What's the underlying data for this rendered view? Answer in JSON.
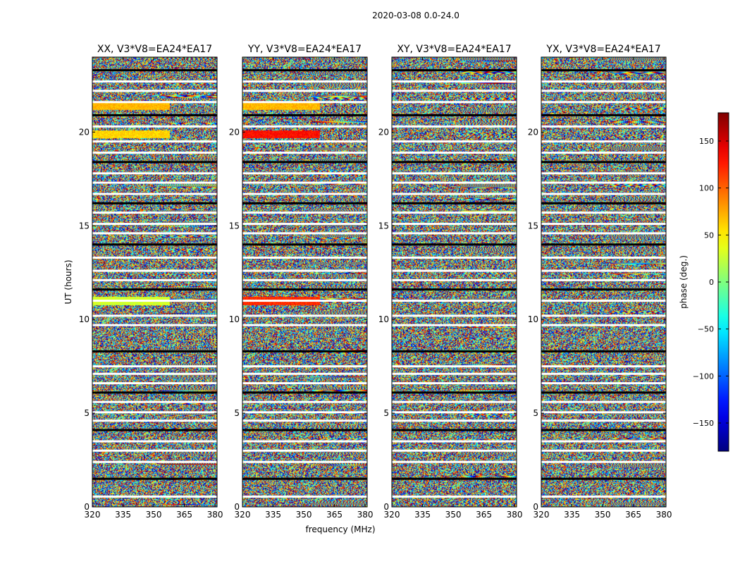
{
  "figure": {
    "suptitle": "2020-03-08 0.0-24.0"
  },
  "chart_data": {
    "type": "heatmap",
    "xlabel": "frequency (MHz)",
    "ylabel": "UT (hours)",
    "xlim": [
      320,
      381
    ],
    "ylim": [
      0,
      24
    ],
    "xticks": [
      320,
      335,
      350,
      365,
      380
    ],
    "yticks": [
      0,
      5,
      10,
      15,
      20
    ],
    "panels": [
      {
        "title": "XX, V3*V8=EA24*EA17",
        "polarization": "XX"
      },
      {
        "title": "YY, V3*V8=EA24*EA17",
        "polarization": "YY"
      },
      {
        "title": "XY, V3*V8=EA24*EA17",
        "polarization": "XY"
      },
      {
        "title": "YX, V3*V8=EA24*EA17",
        "polarization": "YX"
      }
    ],
    "colorbar": {
      "label": "phase (deg.)",
      "range": [
        -180,
        180
      ],
      "ticks": [
        -150,
        -100,
        -50,
        0,
        50,
        100,
        150
      ],
      "colormap": "jet"
    },
    "gaps_ut_hours": [
      0.55,
      1.5,
      2.4,
      3.0,
      3.5,
      4.1,
      4.6,
      5.05,
      5.6,
      6.1,
      6.6,
      7.1,
      7.5,
      8.3,
      9.7,
      10.2,
      11.0,
      11.6,
      12.1,
      12.6,
      13.3,
      14.0,
      14.6,
      15.1,
      15.7,
      16.2,
      16.7,
      17.3,
      17.8,
      18.4,
      18.9,
      19.5,
      20.3,
      20.9,
      21.6,
      22.2,
      22.7,
      23.3
    ],
    "coherent_bands_ut_hours": [
      {
        "ut": 11.0,
        "phase_deg": 30,
        "panels": [
          "XX"
        ]
      },
      {
        "ut": 11.0,
        "phase_deg": 120,
        "panels": [
          "YY"
        ]
      },
      {
        "ut": 19.9,
        "phase_deg": 60,
        "panels": [
          "XX"
        ]
      },
      {
        "ut": 19.9,
        "phase_deg": 130,
        "panels": [
          "YY"
        ]
      },
      {
        "ut": 21.4,
        "phase_deg": 70,
        "panels": [
          "XX",
          "YY"
        ]
      }
    ]
  }
}
